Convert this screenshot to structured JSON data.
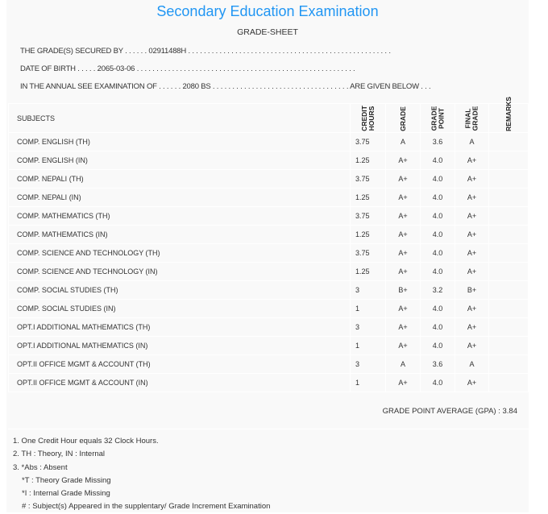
{
  "title": "Secondary Education Examination",
  "subtitle": "GRADE-SHEET",
  "info": {
    "secured_by": "THE GRADE(S) SECURED BY . . . . . . 02911488H . . . . . . . . . . . . . . . . . . . . . . . . . . . . . . . . . . . . . . . . . . . . . . . . . . . .",
    "dob": "DATE OF BIRTH . . . . . 2065-03-06 . . . . . . . . . . . . . . . . . . . . . . . . . . . . . . . . . . . . . . . . . . . . . . . . . . . . . . . .",
    "exam": "IN THE ANNUAL SEE EXAMINATION OF . . . . . . 2080 BS . . . . . . . . . . . . . . . . . . . . . . . . . . . . . . . . . . . ARE GIVEN BELOW . . ."
  },
  "table": {
    "headers": {
      "subjects": "SUBJECTS",
      "credit": [
        "CREDIT",
        "HOURS"
      ],
      "grade": "GRADE",
      "point": [
        "GRADE",
        "POINT"
      ],
      "final": [
        "FINAL",
        "GRADE"
      ],
      "remarks": "REMARKS"
    },
    "rows": [
      {
        "subject": "COMP. ENGLISH (TH)",
        "credit": "3.75",
        "grade": "A",
        "point": "3.6",
        "final": "A"
      },
      {
        "subject": "COMP. ENGLISH (IN)",
        "credit": "1.25",
        "grade": "A+",
        "point": "4.0",
        "final": "A+"
      },
      {
        "subject": "COMP. NEPALI (TH)",
        "credit": "3.75",
        "grade": "A+",
        "point": "4.0",
        "final": "A+"
      },
      {
        "subject": "COMP. NEPALI (IN)",
        "credit": "1.25",
        "grade": "A+",
        "point": "4.0",
        "final": "A+"
      },
      {
        "subject": "COMP. MATHEMATICS (TH)",
        "credit": "3.75",
        "grade": "A+",
        "point": "4.0",
        "final": "A+"
      },
      {
        "subject": "COMP. MATHEMATICS (IN)",
        "credit": "1.25",
        "grade": "A+",
        "point": "4.0",
        "final": "A+"
      },
      {
        "subject": "COMP. SCIENCE AND TECHNOLOGY (TH)",
        "credit": "3.75",
        "grade": "A+",
        "point": "4.0",
        "final": "A+"
      },
      {
        "subject": "COMP. SCIENCE AND TECHNOLOGY (IN)",
        "credit": "1.25",
        "grade": "A+",
        "point": "4.0",
        "final": "A+"
      },
      {
        "subject": "COMP. SOCIAL STUDIES (TH)",
        "credit": "3",
        "grade": "B+",
        "point": "3.2",
        "final": "B+"
      },
      {
        "subject": "COMP. SOCIAL STUDIES (IN)",
        "credit": "1",
        "grade": "A+",
        "point": "4.0",
        "final": "A+"
      },
      {
        "subject": "OPT.I ADDITIONAL MATHEMATICS (TH)",
        "credit": "3",
        "grade": "A+",
        "point": "4.0",
        "final": "A+"
      },
      {
        "subject": "OPT.I ADDITIONAL MATHEMATICS (IN)",
        "credit": "1",
        "grade": "A+",
        "point": "4.0",
        "final": "A+"
      },
      {
        "subject": "OPT.II OFFICE MGMT & ACCOUNT (TH)",
        "credit": "3",
        "grade": "A",
        "point": "3.6",
        "final": "A"
      },
      {
        "subject": "OPT.II OFFICE MGMT & ACCOUNT (IN)",
        "credit": "1",
        "grade": "A+",
        "point": "4.0",
        "final": "A+"
      }
    ]
  },
  "gpa": "GRADE POINT AVERAGE (GPA) : 3.84",
  "notes": [
    "1. One Credit Hour equals 32 Clock Hours.",
    "2. TH : Theory, IN : Internal",
    "3. *Abs : Absent",
    "*T : Theory Grade Missing",
    "*I : Internal Grade Missing",
    "# : Subject(s) Appeared in the supplentary/ Grade Increment Examination"
  ],
  "colors": {
    "title": "#2196f3",
    "background": "#f9f9f9"
  }
}
